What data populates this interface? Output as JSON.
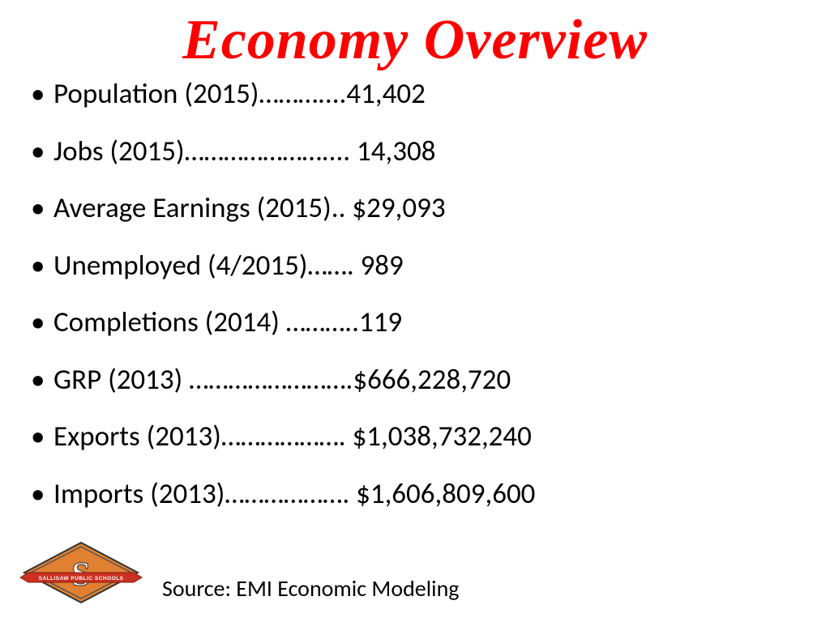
{
  "title": "Economy Overview",
  "title_color": "#ff0000",
  "title_fontsize": 70,
  "body_fontsize": 35,
  "body_color": "#000000",
  "background_color": "#ffffff",
  "bullets": [
    {
      "label": "Population (2015)",
      "dots": "………....",
      "value": "41,402"
    },
    {
      "label": "Jobs (2015)",
      "dots": "………………….... ",
      "value": "14,308"
    },
    {
      "label": "Average Earnings (2015)",
      "dots": ".. ",
      "value": "$29,093"
    },
    {
      "label": "Unemployed (4/2015)",
      "dots": "……. ",
      "value": "989"
    },
    {
      "label": "Completions (2014)",
      "dots": " ………..",
      "value": "119"
    },
    {
      "label": "GRP (2013)",
      "dots": " …………………….",
      "value": "$666,228,720"
    },
    {
      "label": "Exports (2013)",
      "dots": "………………. ",
      "value": "$1,038,732,240"
    },
    {
      "label": "Imports (2013)",
      "dots": "………………. ",
      "value": "$1,606,809,600"
    }
  ],
  "source": "Source: EMI Economic Modeling",
  "logo": {
    "diamond_color": "#e08030",
    "diamond_border": "#333333",
    "letter": "S",
    "letter_color": "#ffffff",
    "banner_color": "#cc3020",
    "banner_text": "SALLISAW PUBLIC SCHOOLS"
  }
}
